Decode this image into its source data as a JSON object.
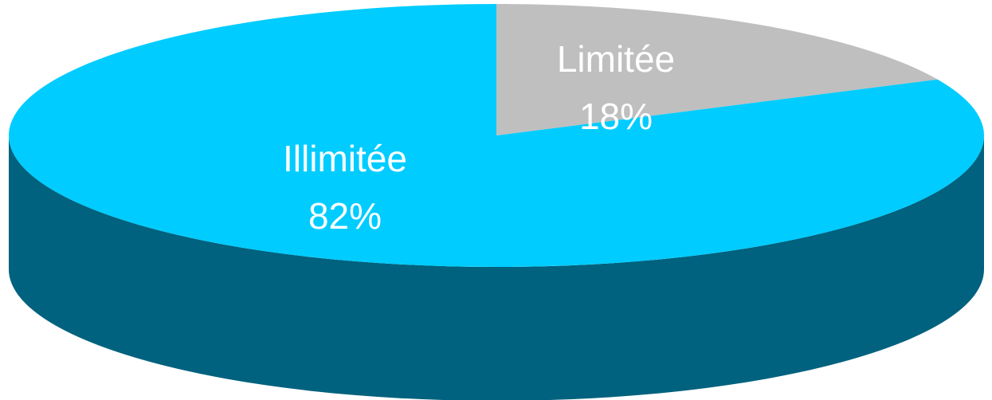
{
  "chart_data": {
    "type": "pie",
    "style": "3d",
    "title": "",
    "categories": [
      "Limitée",
      "Illimitée"
    ],
    "values": [
      18,
      82
    ],
    "value_labels": [
      "18%",
      "82%"
    ],
    "colors": {
      "Limitée": "#BFBFBF",
      "Illimitée": "#00CCFF",
      "side": "#00627E",
      "label_text": "#FFFFFF"
    },
    "legend": "none"
  }
}
